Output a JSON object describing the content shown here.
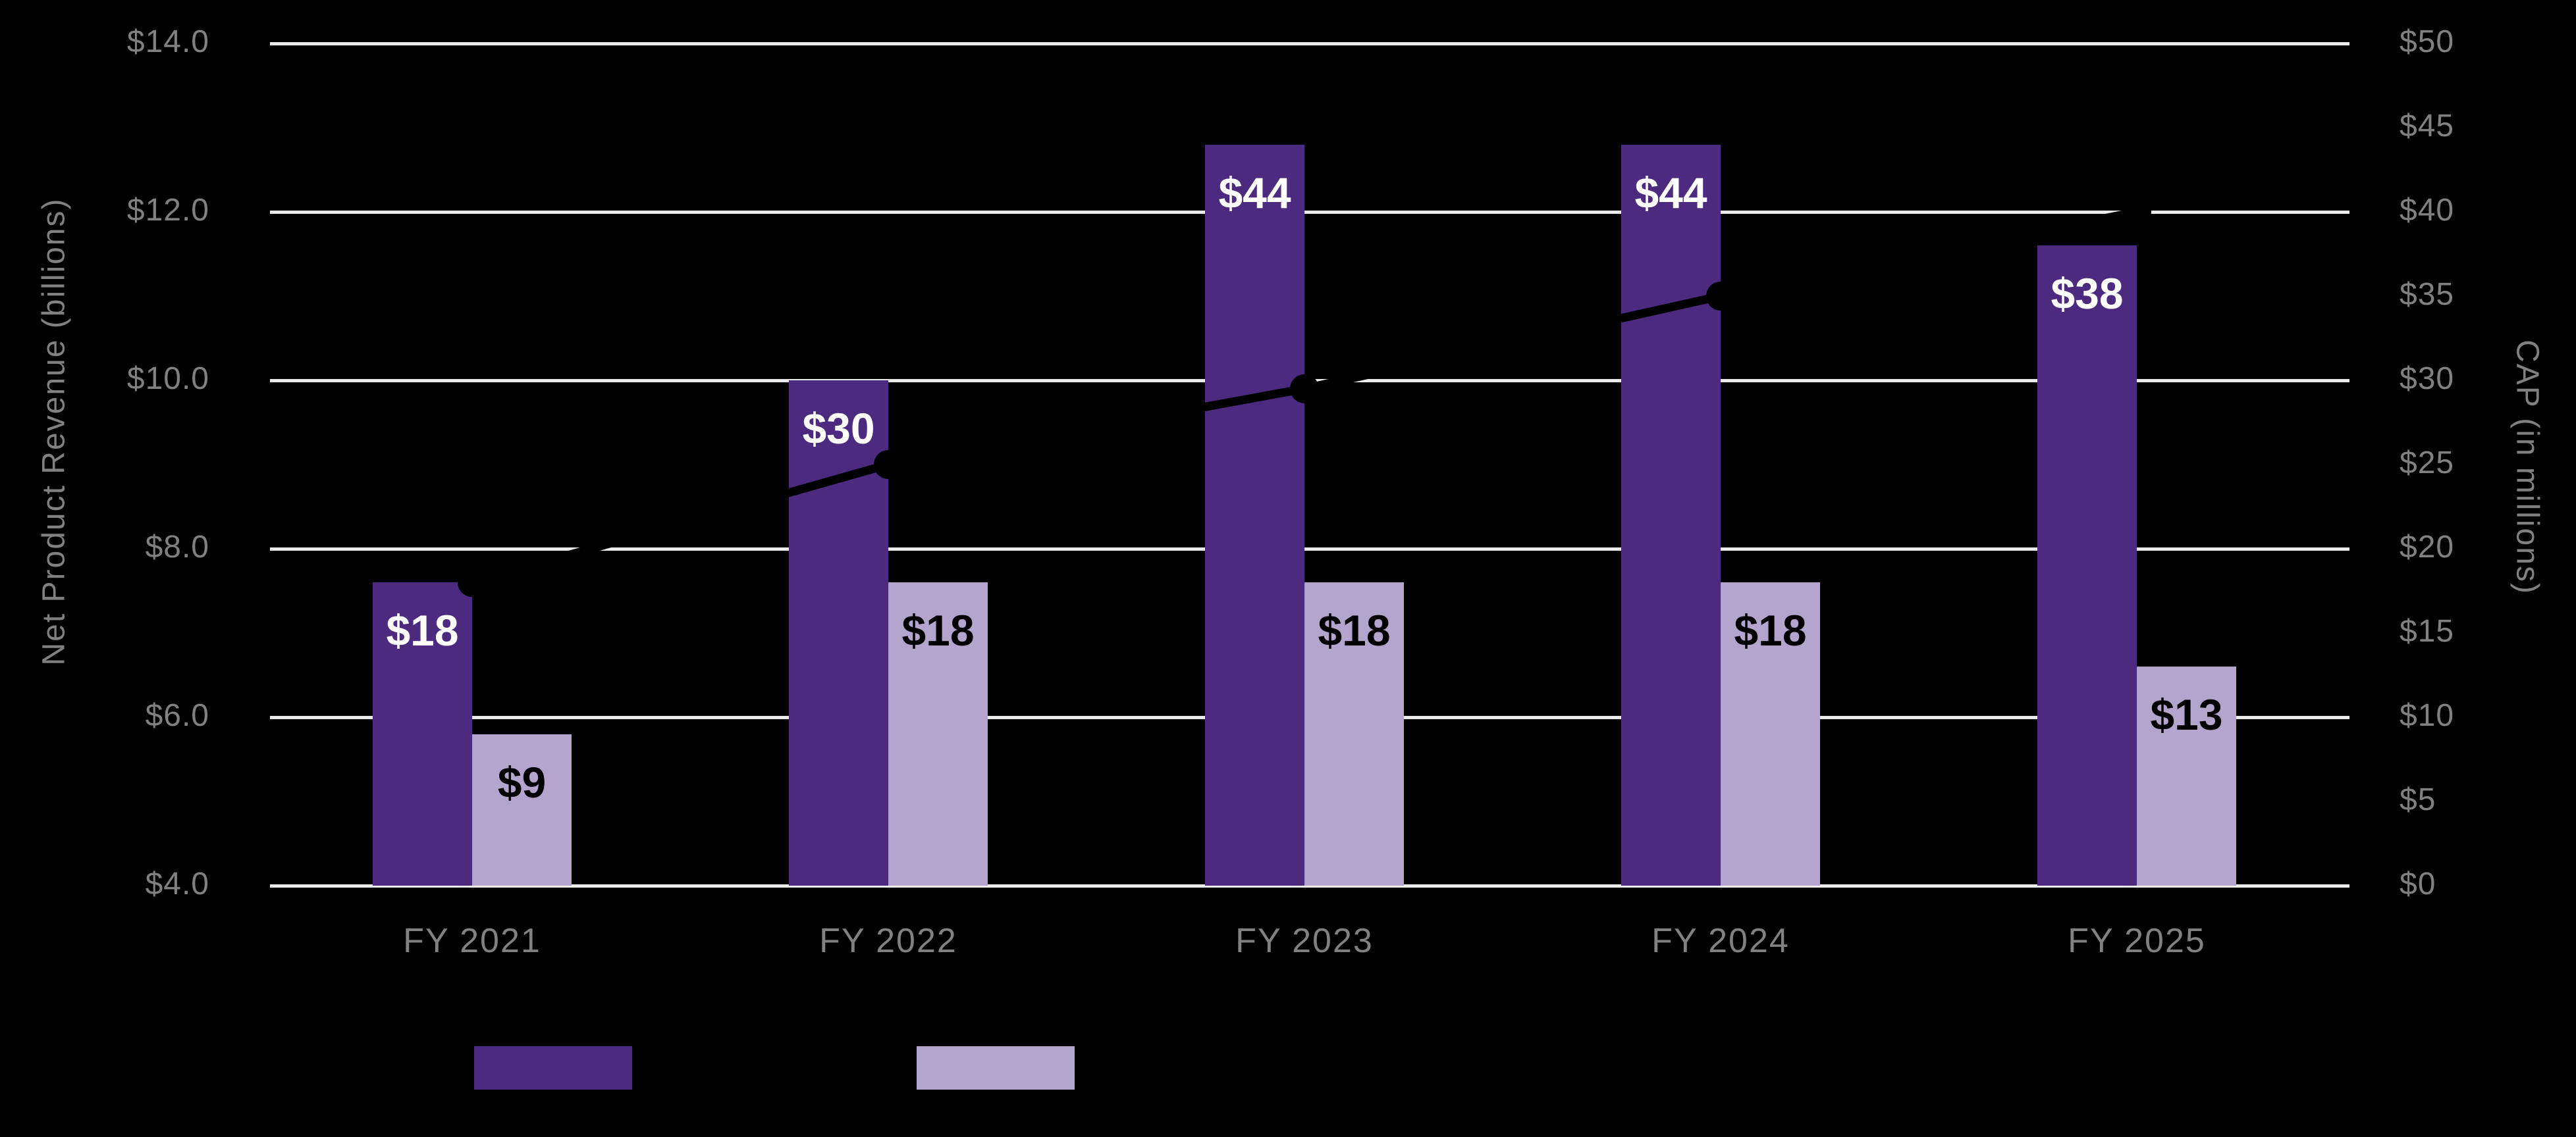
{
  "chart_data": {
    "type": "combo-bar-line",
    "categories": [
      "FY 2021",
      "FY 2022",
      "FY 2023",
      "FY 2024",
      "FY 2025"
    ],
    "series": [
      {
        "name": "dark-purple-bars",
        "type": "bar",
        "axis": "right",
        "color": "#4C2A80",
        "values": [
          18,
          30,
          44,
          44,
          38
        ],
        "labels": [
          "$18",
          "$30",
          "$44",
          "$44",
          "$38"
        ],
        "label_color": "#FFFFFF"
      },
      {
        "name": "light-purple-bars",
        "type": "bar",
        "axis": "right",
        "color": "#B4A5CF",
        "values": [
          9,
          18,
          18,
          18,
          13
        ],
        "labels": [
          "$9",
          "$18",
          "$18",
          "$18",
          "$13"
        ],
        "label_color": "#000000"
      },
      {
        "name": "black-trend-line",
        "type": "line",
        "axis": "left",
        "color": "#000000",
        "values": [
          7.6,
          9.0,
          9.9,
          11.0,
          12.0
        ]
      }
    ],
    "left_axis": {
      "title": "Net Product Revenue (billions)",
      "min": 4.0,
      "max": 14.0,
      "tick_step": 2.0,
      "tick_labels": [
        "$4.0",
        "$6.0",
        "$8.0",
        "$10.0",
        "$12.0",
        "$14.0"
      ]
    },
    "right_axis": {
      "title": "CAP (in millions)",
      "min": 0,
      "max": 50,
      "tick_step": 5,
      "tick_labels": [
        "$0",
        "$5",
        "$10",
        "$15",
        "$20",
        "$25",
        "$30",
        "$35",
        "$40",
        "$45",
        "$50"
      ]
    },
    "grid": "on",
    "gridline_color": "#EAEAEA",
    "background_color": "#000000",
    "tick_label_color": "#818181",
    "legend": {
      "position": "bottom",
      "items": [
        {
          "swatch_color": "#4C2A80",
          "label": ""
        },
        {
          "swatch_color": "#B4A5CF",
          "label": ""
        }
      ]
    }
  }
}
